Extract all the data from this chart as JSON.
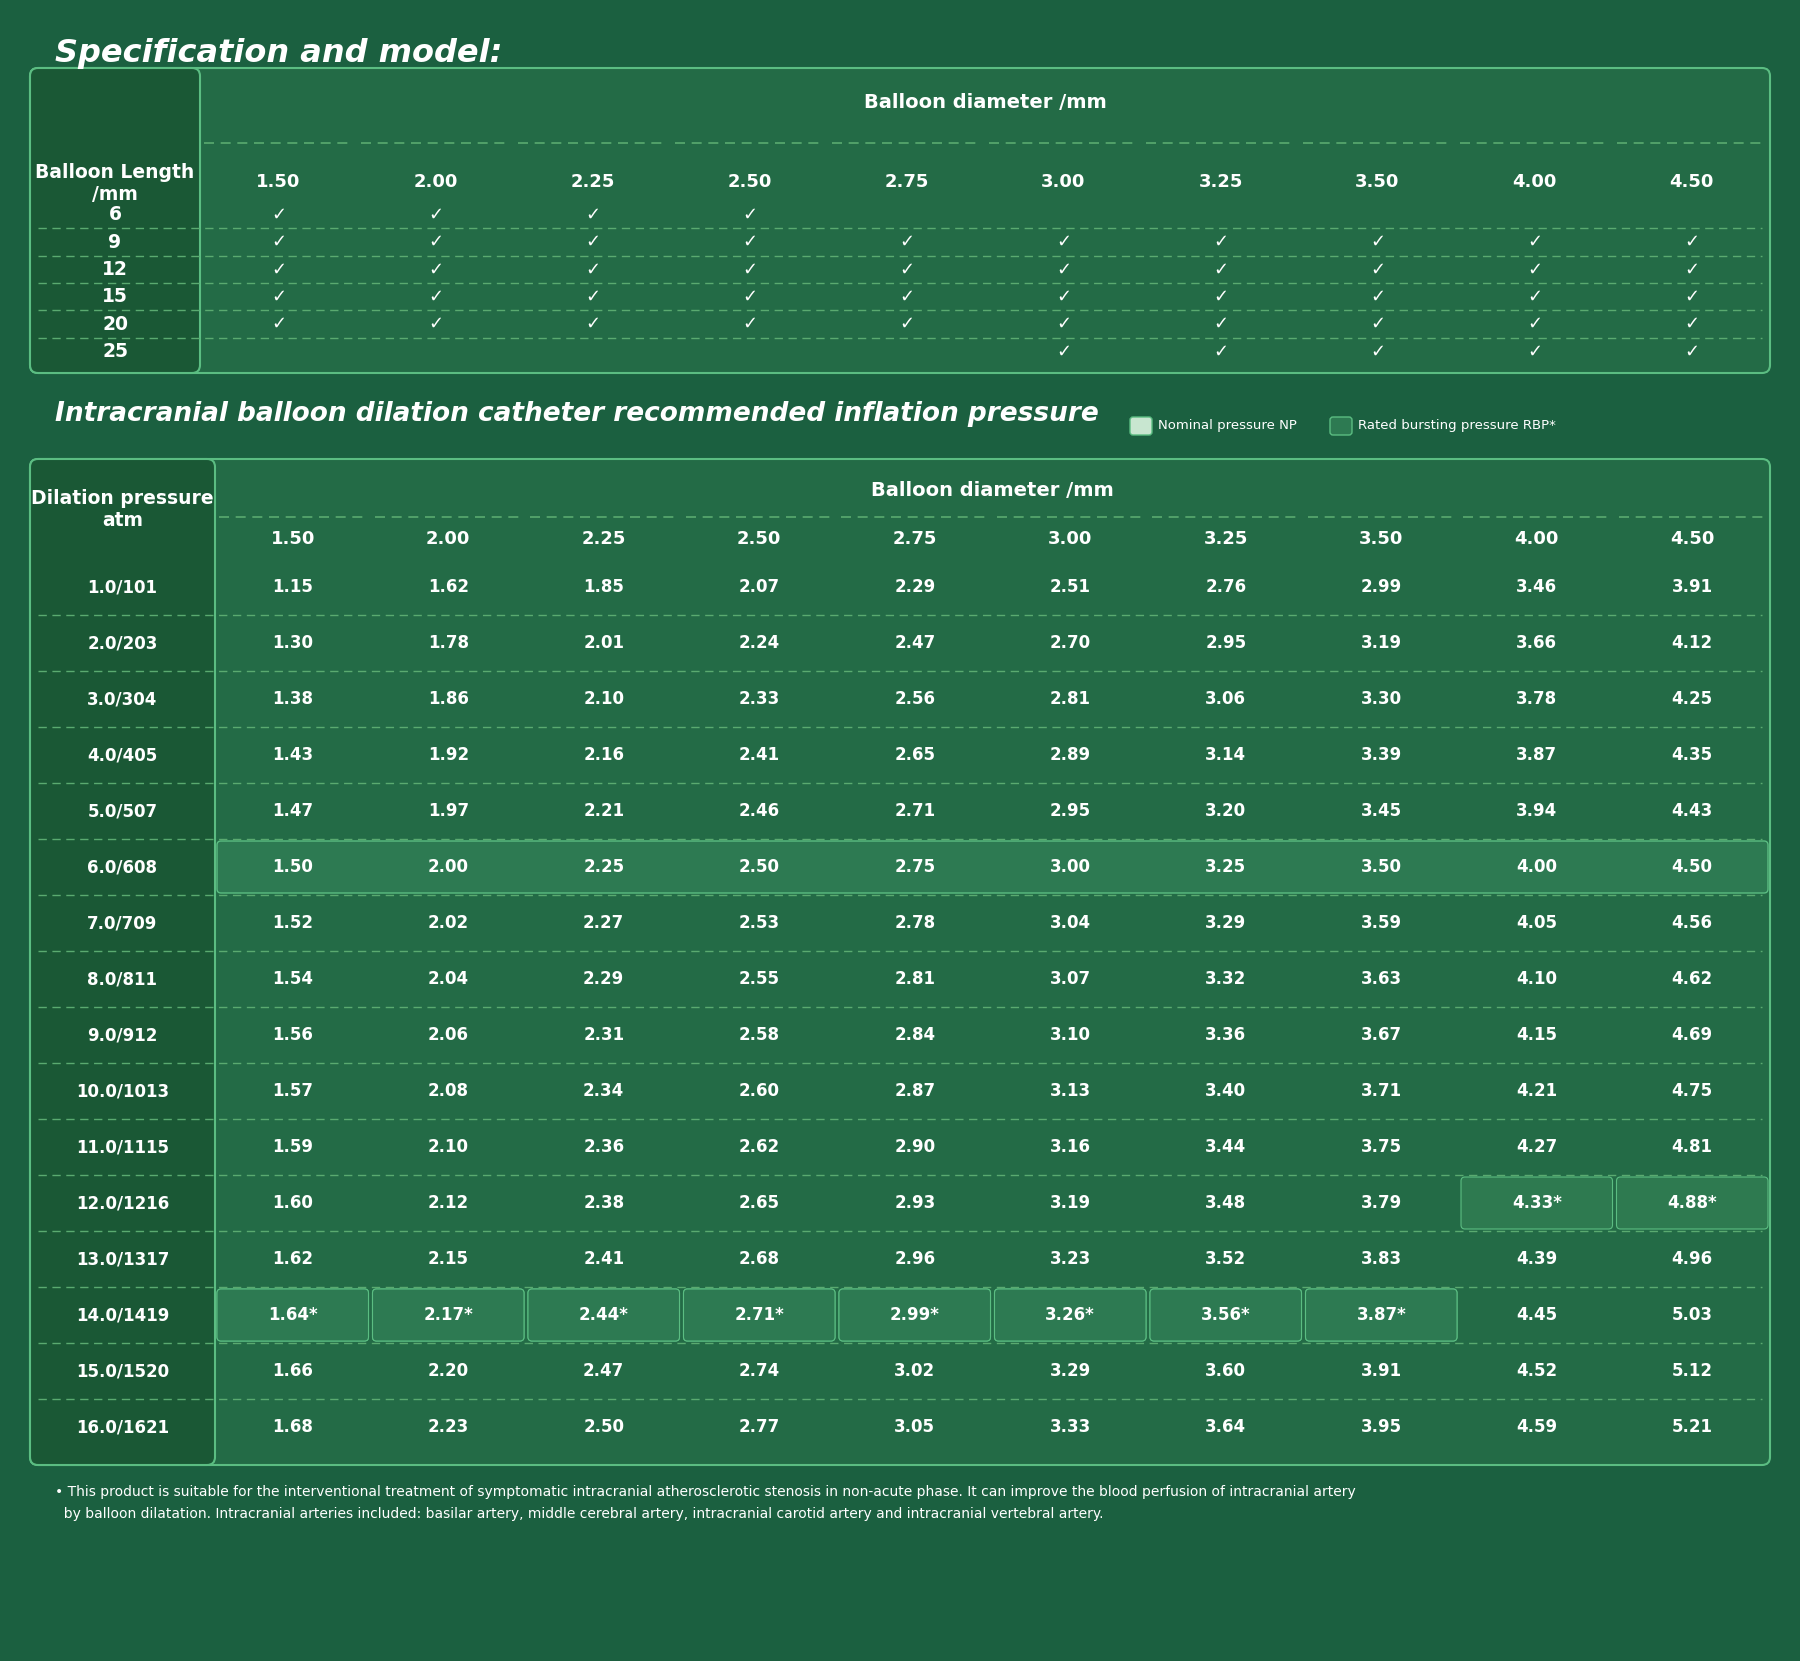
{
  "bg_color": "#1b6040",
  "table_bg": "#1e6b42",
  "table_border": "#5bbd82",
  "header_bg": "#1a5c38",
  "text_color": "#ffffff",
  "dashed_color": "#5aaa70",
  "title1": "Specification and model:",
  "title2": "Intracranial balloon dilation catheter recommended inflation pressure",
  "legend_np": "Nominal pressure NP",
  "legend_rbp": "Rated bursting pressure RBP*",
  "table1_col_header": "Balloon Length\n/mm",
  "table1_diameter_header": "Balloon diameter /mm",
  "table1_diameters": [
    "1.50",
    "2.00",
    "2.25",
    "2.50",
    "2.75",
    "3.00",
    "3.25",
    "3.50",
    "4.00",
    "4.50"
  ],
  "table1_rows": [
    {
      "length": "6",
      "checks": [
        1,
        1,
        1,
        1,
        0,
        0,
        0,
        0,
        0,
        0
      ]
    },
    {
      "length": "9",
      "checks": [
        1,
        1,
        1,
        1,
        1,
        1,
        1,
        1,
        1,
        1
      ]
    },
    {
      "length": "12",
      "checks": [
        1,
        1,
        1,
        1,
        1,
        1,
        1,
        1,
        1,
        1
      ]
    },
    {
      "length": "15",
      "checks": [
        1,
        1,
        1,
        1,
        1,
        1,
        1,
        1,
        1,
        1
      ]
    },
    {
      "length": "20",
      "checks": [
        1,
        1,
        1,
        1,
        1,
        1,
        1,
        1,
        1,
        1
      ]
    },
    {
      "length": "25",
      "checks": [
        0,
        0,
        0,
        0,
        0,
        1,
        1,
        1,
        1,
        1
      ]
    }
  ],
  "table2_col_header": "Dilation pressure\natm",
  "table2_diameter_header": "Balloon diameter /mm",
  "table2_diameters": [
    "1.50",
    "2.00",
    "2.25",
    "2.50",
    "2.75",
    "3.00",
    "3.25",
    "3.50",
    "4.00",
    "4.50"
  ],
  "table2_rows": [
    {
      "pressure": "1.0/101",
      "vals": [
        "1.15",
        "1.62",
        "1.85",
        "2.07",
        "2.29",
        "2.51",
        "2.76",
        "2.99",
        "3.46",
        "3.91"
      ],
      "highlight": false
    },
    {
      "pressure": "2.0/203",
      "vals": [
        "1.30",
        "1.78",
        "2.01",
        "2.24",
        "2.47",
        "2.70",
        "2.95",
        "3.19",
        "3.66",
        "4.12"
      ],
      "highlight": false
    },
    {
      "pressure": "3.0/304",
      "vals": [
        "1.38",
        "1.86",
        "2.10",
        "2.33",
        "2.56",
        "2.81",
        "3.06",
        "3.30",
        "3.78",
        "4.25"
      ],
      "highlight": false
    },
    {
      "pressure": "4.0/405",
      "vals": [
        "1.43",
        "1.92",
        "2.16",
        "2.41",
        "2.65",
        "2.89",
        "3.14",
        "3.39",
        "3.87",
        "4.35"
      ],
      "highlight": false
    },
    {
      "pressure": "5.0/507",
      "vals": [
        "1.47",
        "1.97",
        "2.21",
        "2.46",
        "2.71",
        "2.95",
        "3.20",
        "3.45",
        "3.94",
        "4.43"
      ],
      "highlight": false
    },
    {
      "pressure": "6.0/608",
      "vals": [
        "1.50",
        "2.00",
        "2.25",
        "2.50",
        "2.75",
        "3.00",
        "3.25",
        "3.50",
        "4.00",
        "4.50"
      ],
      "highlight": true
    },
    {
      "pressure": "7.0/709",
      "vals": [
        "1.52",
        "2.02",
        "2.27",
        "2.53",
        "2.78",
        "3.04",
        "3.29",
        "3.59",
        "4.05",
        "4.56"
      ],
      "highlight": false
    },
    {
      "pressure": "8.0/811",
      "vals": [
        "1.54",
        "2.04",
        "2.29",
        "2.55",
        "2.81",
        "3.07",
        "3.32",
        "3.63",
        "4.10",
        "4.62"
      ],
      "highlight": false
    },
    {
      "pressure": "9.0/912",
      "vals": [
        "1.56",
        "2.06",
        "2.31",
        "2.58",
        "2.84",
        "3.10",
        "3.36",
        "3.67",
        "4.15",
        "4.69"
      ],
      "highlight": false
    },
    {
      "pressure": "10.0/1013",
      "vals": [
        "1.57",
        "2.08",
        "2.34",
        "2.60",
        "2.87",
        "3.13",
        "3.40",
        "3.71",
        "4.21",
        "4.75"
      ],
      "highlight": false
    },
    {
      "pressure": "11.0/1115",
      "vals": [
        "1.59",
        "2.10",
        "2.36",
        "2.62",
        "2.90",
        "3.16",
        "3.44",
        "3.75",
        "4.27",
        "4.81"
      ],
      "highlight": false
    },
    {
      "pressure": "12.0/1216",
      "vals": [
        "1.60",
        "2.12",
        "2.38",
        "2.65",
        "2.93",
        "3.19",
        "3.48",
        "3.79",
        "4.33*",
        "4.88*"
      ],
      "highlight": false,
      "rbp_cols": [
        8,
        9
      ]
    },
    {
      "pressure": "13.0/1317",
      "vals": [
        "1.62",
        "2.15",
        "2.41",
        "2.68",
        "2.96",
        "3.23",
        "3.52",
        "3.83",
        "4.39",
        "4.96"
      ],
      "highlight": false
    },
    {
      "pressure": "14.0/1419",
      "vals": [
        "1.64*",
        "2.17*",
        "2.44*",
        "2.71*",
        "2.99*",
        "3.26*",
        "3.56*",
        "3.87*",
        "4.45",
        "5.03"
      ],
      "highlight": true,
      "rbp_cols": [
        0,
        1,
        2,
        3,
        4,
        5,
        6,
        7
      ]
    },
    {
      "pressure": "15.0/1520",
      "vals": [
        "1.66",
        "2.20",
        "2.47",
        "2.74",
        "3.02",
        "3.29",
        "3.60",
        "3.91",
        "4.52",
        "5.12"
      ],
      "highlight": false
    },
    {
      "pressure": "16.0/1621",
      "vals": [
        "1.68",
        "2.23",
        "2.50",
        "2.77",
        "3.05",
        "3.33",
        "3.64",
        "3.95",
        "4.59",
        "5.21"
      ],
      "highlight": false
    }
  ],
  "footnote_line1": "• This product is suitable for the interventional treatment of symptomatic intracranial atherosclerotic stenosis in non-acute phase. It can improve the blood perfusion of intracranial artery",
  "footnote_line2": "  by balloon dilatation. Intracranial arteries included: basilar artery, middle cerebral artery, intracranial carotid artery and intracranial vertebral artery."
}
